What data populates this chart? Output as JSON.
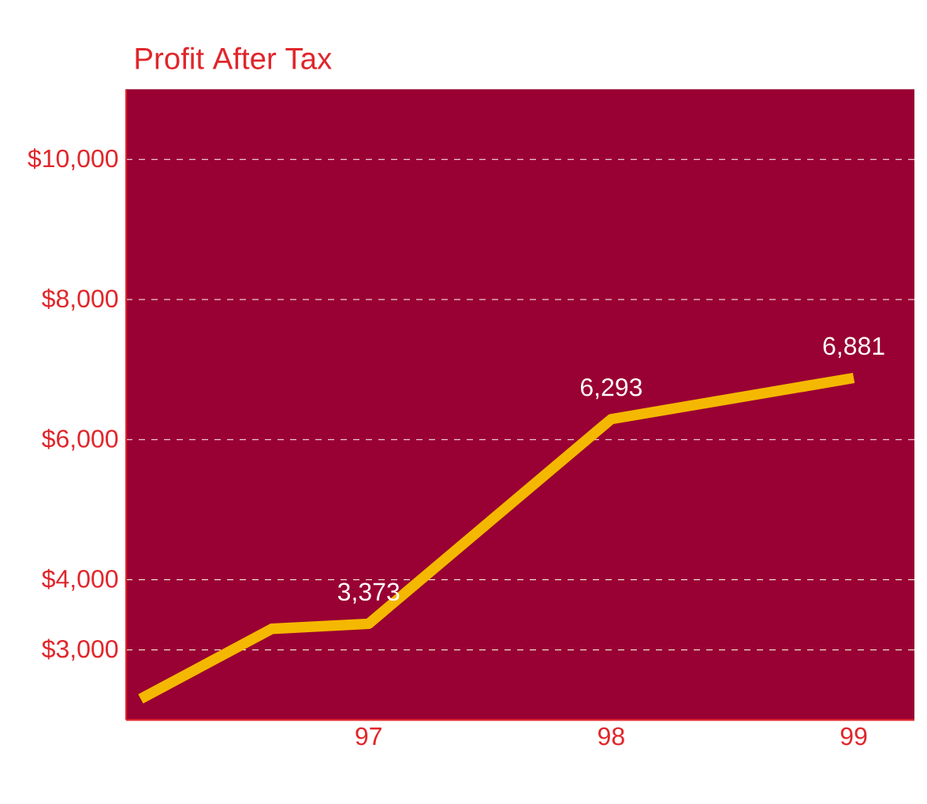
{
  "chart_data": {
    "type": "line",
    "title": "Profit After Tax",
    "x": [
      96.06,
      96.6,
      97,
      98,
      99
    ],
    "series": [
      {
        "color": "#f5b800",
        "values": [
          2300,
          3300,
          3373,
          6293,
          6881
        ],
        "value_labels": [
          null,
          null,
          "3,373",
          "6,293",
          "6,881"
        ]
      }
    ],
    "xlim": [
      96,
      99.25
    ],
    "xticks": [
      97,
      98,
      99
    ],
    "ylim": [
      2000,
      11000
    ],
    "yticks": [
      {
        "value": 3000,
        "label": "$3,000"
      },
      {
        "value": 4000,
        "label": "$4,000"
      },
      {
        "value": 6000,
        "label": "$6,000"
      },
      {
        "value": 8000,
        "label": "$8,000"
      },
      {
        "value": 10000,
        "label": "$10,000"
      }
    ],
    "grid": "y",
    "marker": "none",
    "line_style": "solid"
  }
}
